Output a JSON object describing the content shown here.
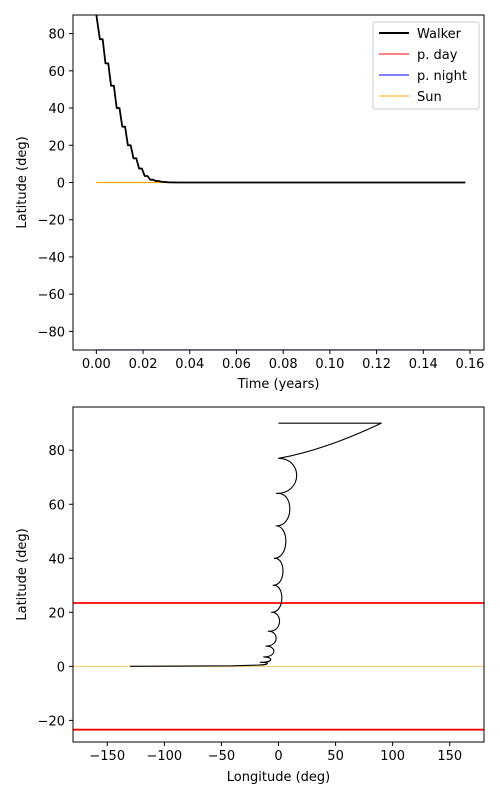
{
  "chart_data": [
    {
      "type": "line",
      "xlabel": "Time (years)",
      "ylabel": "Latitude (deg)",
      "xlim": [
        -0.01,
        0.166
      ],
      "ylim": [
        -90,
        90
      ],
      "xticks": [
        0.0,
        0.02,
        0.04,
        0.06,
        0.08,
        0.1,
        0.12,
        0.14,
        0.16
      ],
      "xtick_labels": [
        "0.00",
        "0.02",
        "0.04",
        "0.06",
        "0.08",
        "0.10",
        "0.12",
        "0.14",
        "0.16"
      ],
      "yticks": [
        -80,
        -60,
        -40,
        -20,
        0,
        20,
        40,
        60,
        80
      ],
      "ytick_labels": [
        "−80",
        "−60",
        "−40",
        "−20",
        "0",
        "20",
        "40",
        "60",
        "80"
      ],
      "legend_position": "top-right",
      "series": [
        {
          "name": "Walker",
          "color": "#000000",
          "x": [
            0.0,
            0.0015,
            0.0027,
            0.0039,
            0.0051,
            0.0063,
            0.0075,
            0.0087,
            0.0099,
            0.0111,
            0.0123,
            0.0135,
            0.0147,
            0.0159,
            0.0171,
            0.0183,
            0.0195,
            0.0207,
            0.0219,
            0.0231,
            0.0243,
            0.0255,
            0.0267,
            0.0279,
            0.0291,
            0.031,
            0.035,
            0.158
          ],
          "y": [
            90,
            77,
            77,
            64,
            64,
            52,
            52,
            40,
            40,
            30,
            30,
            20,
            20,
            13,
            13,
            7.5,
            7.5,
            3.5,
            3.5,
            1.5,
            1.5,
            0.8,
            0.8,
            0.4,
            0.3,
            0.1,
            0.0,
            0.0
          ]
        },
        {
          "name": "p. day",
          "color": "#ff0000",
          "x": [],
          "y": []
        },
        {
          "name": "p. night",
          "color": "#0000ff",
          "x": [
            0.0,
            0.158
          ],
          "y": [
            -90,
            -90
          ]
        },
        {
          "name": "Sun",
          "color": "#ffa500",
          "x": [
            0.0,
            0.158
          ],
          "y": [
            0,
            0
          ]
        }
      ]
    },
    {
      "type": "line",
      "xlabel": "Longitude (deg)",
      "ylabel": "Latitude (deg)",
      "xlim": [
        -180,
        180
      ],
      "ylim": [
        -28,
        96
      ],
      "xticks": [
        -150,
        -100,
        -50,
        0,
        50,
        100,
        150
      ],
      "xtick_labels": [
        "−150",
        "−100",
        "−50",
        "0",
        "50",
        "100",
        "150"
      ],
      "yticks": [
        -20,
        0,
        20,
        40,
        60,
        80
      ],
      "ytick_labels": [
        "−20",
        "0",
        "20",
        "40",
        "60",
        "80"
      ],
      "reference_lines": [
        {
          "y": 23.44,
          "color": "#ff0000"
        },
        {
          "y": -23.44,
          "color": "#ff0000"
        },
        {
          "y": 0,
          "color": "#ffd27f"
        }
      ],
      "walker_path": {
        "color": "#000000",
        "start": [
          0,
          90
        ],
        "spiral_turns": [
          {
            "lat_top": 90,
            "lat_bottom": 77,
            "lon_offset": 90,
            "lon_center": 0
          },
          {
            "lat_top": 77,
            "lat_bottom": 64,
            "lon_offset": 18,
            "lon_center": 0
          },
          {
            "lat_top": 64,
            "lat_bottom": 52,
            "lon_offset": 10,
            "lon_center": 0
          },
          {
            "lat_top": 52,
            "lat_bottom": 40,
            "lon_offset": 6,
            "lon_center": -2
          },
          {
            "lat_top": 40,
            "lat_bottom": 30,
            "lon_offset": 3,
            "lon_center": -3
          },
          {
            "lat_top": 30,
            "lat_bottom": 20,
            "lon_offset": 2,
            "lon_center": -4
          },
          {
            "lat_top": 20,
            "lat_bottom": 13,
            "lon_offset": 0,
            "lon_center": -6
          },
          {
            "lat_top": 13,
            "lat_bottom": 7.5,
            "lon_offset": -3,
            "lon_center": -9
          },
          {
            "lat_top": 7.5,
            "lat_bottom": 3.5,
            "lon_offset": -5,
            "lon_center": -11
          },
          {
            "lat_top": 3.5,
            "lat_bottom": 1.5,
            "lon_offset": -8,
            "lon_center": -13
          },
          {
            "lat_top": 1.5,
            "lat_bottom": 0.5,
            "lon_offset": -11,
            "lon_center": -16
          }
        ],
        "tail_x": [
          -16,
          -40,
          -80,
          -130
        ],
        "tail_y": [
          0.5,
          0.2,
          0.1,
          0.0
        ]
      }
    }
  ]
}
